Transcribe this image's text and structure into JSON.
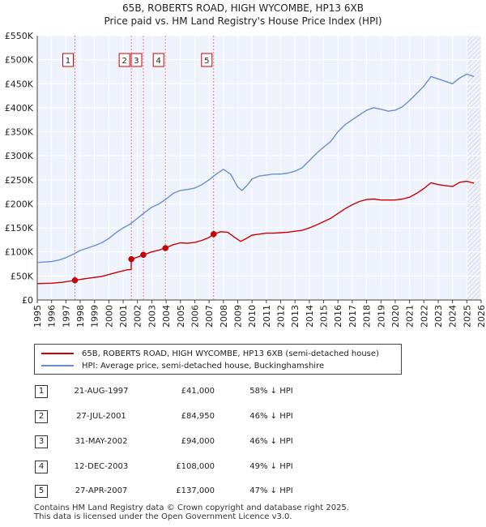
{
  "header": {
    "line1": "65B, ROBERTS ROAD, HIGH WYCOMBE, HP13 6XB",
    "line2": "Price paid vs. HM Land Registry's House Price Index (HPI)"
  },
  "chart_data": {
    "type": "line",
    "title": "65B, ROBERTS ROAD, HIGH WYCOMBE, HP13 6XB — Price paid vs. HM Land Registry's House Price Index (HPI)",
    "xlim": [
      1995,
      2026
    ],
    "ylim": [
      0,
      550000
    ],
    "x_ticks": [
      "1995",
      "1996",
      "1997",
      "1998",
      "1999",
      "2000",
      "2001",
      "2002",
      "2003",
      "2004",
      "2005",
      "2006",
      "2007",
      "2008",
      "2009",
      "2010",
      "2011",
      "2012",
      "2013",
      "2014",
      "2015",
      "2016",
      "2017",
      "2018",
      "2019",
      "2020",
      "2021",
      "2022",
      "2023",
      "2024",
      "2025",
      "2026"
    ],
    "y_ticks": [
      {
        "value": 0,
        "label": "£0"
      },
      {
        "value": 50000,
        "label": "£50K"
      },
      {
        "value": 100000,
        "label": "£100K"
      },
      {
        "value": 150000,
        "label": "£150K"
      },
      {
        "value": 200000,
        "label": "£200K"
      },
      {
        "value": 250000,
        "label": "£250K"
      },
      {
        "value": 300000,
        "label": "£300K"
      },
      {
        "value": 350000,
        "label": "£350K"
      },
      {
        "value": 400000,
        "label": "£400K"
      },
      {
        "value": 450000,
        "label": "£450K"
      },
      {
        "value": 500000,
        "label": "£500K"
      },
      {
        "value": 550000,
        "label": "£550K"
      }
    ],
    "series": [
      {
        "name": "65B, ROBERTS ROAD, HIGH WYCOMBE, HP13 6XB (semi-detached house)",
        "color": "#cc0000",
        "points": [
          [
            1995.0,
            34000
          ],
          [
            1996.0,
            35000
          ],
          [
            1996.8,
            37000
          ],
          [
            1997.63,
            41000
          ],
          [
            1998.5,
            45000
          ],
          [
            1999.5,
            49000
          ],
          [
            2000.5,
            57000
          ],
          [
            2001.3,
            63000
          ],
          [
            2001.56,
            63500
          ],
          [
            2001.57,
            84950
          ],
          [
            2002.0,
            89000
          ],
          [
            2002.41,
            94000
          ],
          [
            2003.0,
            100000
          ],
          [
            2003.5,
            104000
          ],
          [
            2003.95,
            108000
          ],
          [
            2004.5,
            115000
          ],
          [
            2005.0,
            119000
          ],
          [
            2005.5,
            118000
          ],
          [
            2006.0,
            120000
          ],
          [
            2006.5,
            124000
          ],
          [
            2007.0,
            130000
          ],
          [
            2007.32,
            137000
          ],
          [
            2007.8,
            142000
          ],
          [
            2008.3,
            141000
          ],
          [
            2008.8,
            130000
          ],
          [
            2009.2,
            122000
          ],
          [
            2009.6,
            128000
          ],
          [
            2010.0,
            135000
          ],
          [
            2010.5,
            137000
          ],
          [
            2011.0,
            139000
          ],
          [
            2011.5,
            139000
          ],
          [
            2012.0,
            140000
          ],
          [
            2012.5,
            141000
          ],
          [
            2013.0,
            143000
          ],
          [
            2013.5,
            145000
          ],
          [
            2014.0,
            150000
          ],
          [
            2014.5,
            156000
          ],
          [
            2015.0,
            163000
          ],
          [
            2015.5,
            170000
          ],
          [
            2016.0,
            180000
          ],
          [
            2016.5,
            190000
          ],
          [
            2017.0,
            198000
          ],
          [
            2017.5,
            205000
          ],
          [
            2018.0,
            209000
          ],
          [
            2018.5,
            210000
          ],
          [
            2019.0,
            208000
          ],
          [
            2019.5,
            208000
          ],
          [
            2020.0,
            208000
          ],
          [
            2020.5,
            210000
          ],
          [
            2021.0,
            214000
          ],
          [
            2021.5,
            222000
          ],
          [
            2022.0,
            232000
          ],
          [
            2022.5,
            244000
          ],
          [
            2023.0,
            240000
          ],
          [
            2023.5,
            238000
          ],
          [
            2024.0,
            236000
          ],
          [
            2024.5,
            245000
          ],
          [
            2025.0,
            247000
          ],
          [
            2025.5,
            243000
          ]
        ]
      },
      {
        "name": "HPI: Average price, semi-detached house, Buckinghamshire",
        "color": "#6a8fcf",
        "points": [
          [
            1995.0,
            78000
          ],
          [
            1995.5,
            79000
          ],
          [
            1996.0,
            80000
          ],
          [
            1996.5,
            83000
          ],
          [
            1997.0,
            88000
          ],
          [
            1997.63,
            97000
          ],
          [
            1998.0,
            103000
          ],
          [
            1998.5,
            108000
          ],
          [
            1999.0,
            113000
          ],
          [
            1999.5,
            119000
          ],
          [
            2000.0,
            128000
          ],
          [
            2000.5,
            140000
          ],
          [
            2001.0,
            150000
          ],
          [
            2001.5,
            158000
          ],
          [
            2002.0,
            170000
          ],
          [
            2002.5,
            182000
          ],
          [
            2003.0,
            193000
          ],
          [
            2003.5,
            200000
          ],
          [
            2004.0,
            210000
          ],
          [
            2004.5,
            222000
          ],
          [
            2005.0,
            228000
          ],
          [
            2005.5,
            230000
          ],
          [
            2006.0,
            233000
          ],
          [
            2006.5,
            240000
          ],
          [
            2007.0,
            250000
          ],
          [
            2007.5,
            262000
          ],
          [
            2008.0,
            272000
          ],
          [
            2008.5,
            262000
          ],
          [
            2009.0,
            235000
          ],
          [
            2009.3,
            228000
          ],
          [
            2009.7,
            240000
          ],
          [
            2010.0,
            252000
          ],
          [
            2010.5,
            258000
          ],
          [
            2011.0,
            260000
          ],
          [
            2011.5,
            262000
          ],
          [
            2012.0,
            262000
          ],
          [
            2012.5,
            264000
          ],
          [
            2013.0,
            268000
          ],
          [
            2013.5,
            275000
          ],
          [
            2014.0,
            290000
          ],
          [
            2014.5,
            305000
          ],
          [
            2015.0,
            318000
          ],
          [
            2015.5,
            330000
          ],
          [
            2016.0,
            350000
          ],
          [
            2016.5,
            365000
          ],
          [
            2017.0,
            375000
          ],
          [
            2017.5,
            385000
          ],
          [
            2018.0,
            395000
          ],
          [
            2018.5,
            400000
          ],
          [
            2019.0,
            397000
          ],
          [
            2019.5,
            393000
          ],
          [
            2020.0,
            395000
          ],
          [
            2020.5,
            402000
          ],
          [
            2021.0,
            415000
          ],
          [
            2021.5,
            430000
          ],
          [
            2022.0,
            445000
          ],
          [
            2022.5,
            465000
          ],
          [
            2023.0,
            460000
          ],
          [
            2023.5,
            455000
          ],
          [
            2024.0,
            450000
          ],
          [
            2024.5,
            462000
          ],
          [
            2025.0,
            470000
          ],
          [
            2025.5,
            465000
          ]
        ]
      }
    ],
    "sales": [
      {
        "n": "1",
        "x": 1997.63,
        "price": 41000
      },
      {
        "n": "2",
        "x": 2001.57,
        "price": 84950
      },
      {
        "n": "3",
        "x": 2002.41,
        "price": 94000
      },
      {
        "n": "4",
        "x": 2003.95,
        "price": 108000
      },
      {
        "n": "5",
        "x": 2007.32,
        "price": 137000
      }
    ],
    "forecast_from": 2025.0
  },
  "legend": {
    "property": "65B, ROBERTS ROAD, HIGH WYCOMBE, HP13 6XB (semi-detached house)",
    "hpi": "HPI: Average price, semi-detached house, Buckinghamshire",
    "property_color": "#cc0000",
    "hpi_color": "#6a8fcf"
  },
  "transactions": [
    {
      "n": "1",
      "date": "21-AUG-1997",
      "price": "£41,000",
      "hpi": "58% ↓ HPI"
    },
    {
      "n": "2",
      "date": "27-JUL-2001",
      "price": "£84,950",
      "hpi": "46% ↓ HPI"
    },
    {
      "n": "3",
      "date": "31-MAY-2002",
      "price": "£94,000",
      "hpi": "46% ↓ HPI"
    },
    {
      "n": "4",
      "date": "12-DEC-2003",
      "price": "£108,000",
      "hpi": "49% ↓ HPI"
    },
    {
      "n": "5",
      "date": "27-APR-2007",
      "price": "£137,000",
      "hpi": "47% ↓ HPI"
    }
  ],
  "footer": {
    "line1": "Contains HM Land Registry data © Crown copyright and database right 2025.",
    "line2": "This data is licensed under the Open Government Licence v3.0."
  }
}
